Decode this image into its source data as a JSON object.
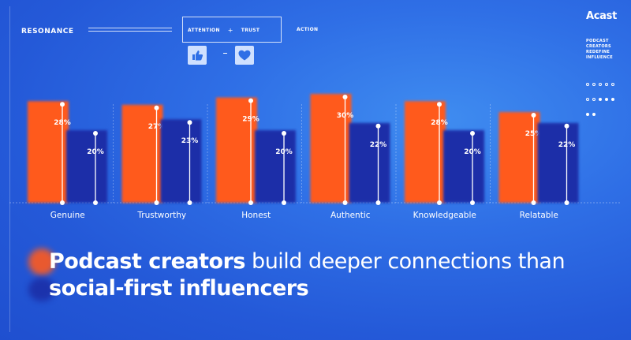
{
  "header": {
    "section_label": "RESONANCE",
    "box_left": "ATTENTION",
    "box_plus": "+",
    "box_right": "TRUST",
    "action_label": "ACTION",
    "icon_left": "thumbs-up-icon",
    "icon_right": "heart-icon",
    "icon_separator": "-"
  },
  "brand": {
    "logo": "Acast",
    "tagline": [
      "PODCAST",
      "CREATORS",
      "REDEFINE",
      "INFLUENCE"
    ]
  },
  "headline": {
    "bold": "Podcast creators",
    "rest": " build deeper connections than",
    "line2": "social-first influencers"
  },
  "colors": {
    "podcast": "#ff5a1e",
    "influencer": "#1b2fa8",
    "background": "#2f6fe6"
  },
  "chart_data": {
    "type": "bar",
    "categories": [
      "Genuine",
      "Trustworthy",
      "Honest",
      "Authentic",
      "Knowledgeable",
      "Relatable"
    ],
    "series": [
      {
        "values": [
          28,
          27,
          29,
          30,
          28,
          25
        ]
      },
      {
        "values": [
          20,
          23,
          20,
          22,
          20,
          22
        ]
      }
    ],
    "value_suffix": "%",
    "ylim": [
      0,
      35
    ],
    "grid": false
  }
}
